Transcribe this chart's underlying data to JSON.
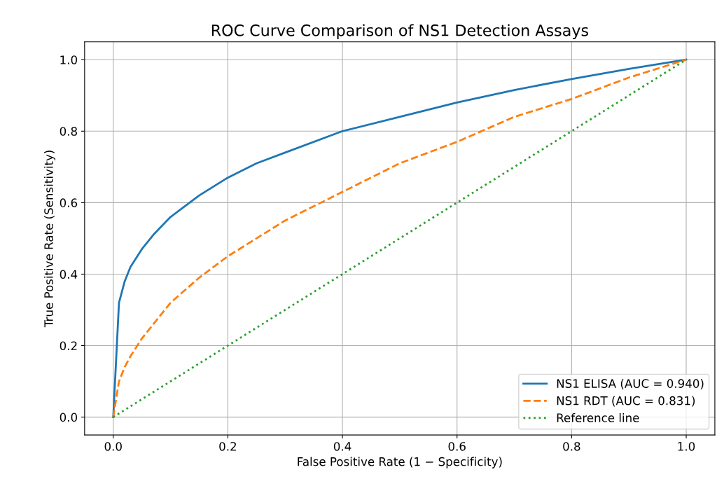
{
  "chart_data": {
    "type": "line",
    "title": "ROC Curve Comparison of NS1 Detection Assays",
    "xlabel": "False Positive Rate (1 − Specificity)",
    "ylabel": "True Positive Rate (Sensitivity)",
    "series": [
      {
        "name": "NS1 ELISA (AUC = 0.940)",
        "color": "#1f77b4",
        "line_style": "solid",
        "x": [
          0,
          0.01,
          0.02,
          0.03,
          0.05,
          0.07,
          0.1,
          0.15,
          0.2,
          0.25,
          0.3,
          0.4,
          0.5,
          0.6,
          0.7,
          0.8,
          0.9,
          1.0
        ],
        "values": [
          0,
          0.32,
          0.38,
          0.42,
          0.47,
          0.51,
          0.56,
          0.62,
          0.67,
          0.71,
          0.74,
          0.8,
          0.84,
          0.88,
          0.915,
          0.946,
          0.974,
          1.0
        ]
      },
      {
        "name": "NS1 RDT (AUC = 0.831)",
        "color": "#ff7f0e",
        "line_style": "dashed",
        "x": [
          0,
          0.01,
          0.02,
          0.03,
          0.05,
          0.07,
          0.1,
          0.15,
          0.2,
          0.25,
          0.3,
          0.4,
          0.5,
          0.6,
          0.7,
          0.8,
          0.9,
          1.0
        ],
        "values": [
          0,
          0.1,
          0.14,
          0.17,
          0.22,
          0.26,
          0.32,
          0.39,
          0.45,
          0.5,
          0.55,
          0.63,
          0.71,
          0.77,
          0.84,
          0.89,
          0.95,
          1.0
        ]
      },
      {
        "name": "Reference line",
        "color": "#2ca02c",
        "line_style": "dotted",
        "x": [
          0,
          1
        ],
        "values": [
          0,
          1
        ]
      }
    ],
    "xlim": [
      -0.05,
      1.05
    ],
    "ylim": [
      -0.05,
      1.05
    ],
    "xticks": [
      {
        "value": 0,
        "label": "0.0"
      },
      0.2,
      0.4,
      0.6,
      0.8,
      {
        "value": 1,
        "label": "1.0"
      }
    ],
    "yticks": [
      {
        "value": 0,
        "label": "0.0"
      },
      0.2,
      0.4,
      0.6,
      0.8,
      {
        "value": 1,
        "label": "1.0"
      }
    ],
    "grid": true,
    "legend": "lower right"
  }
}
